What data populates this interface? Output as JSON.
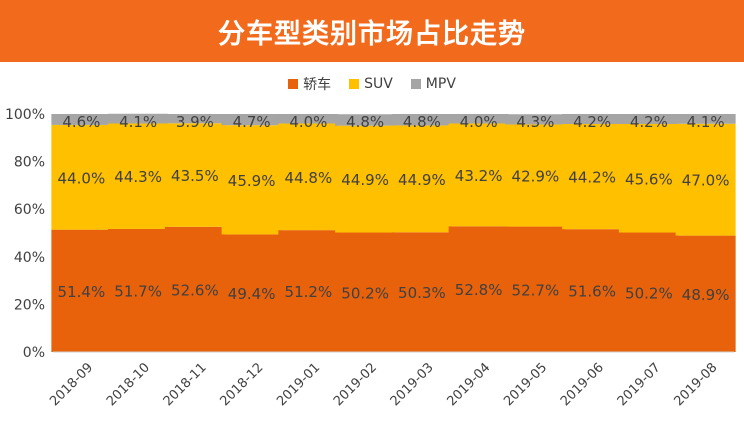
{
  "title": "分车型类别市场占比走势",
  "colors": {
    "header_bg": "#f26b1d",
    "sedan": "#e8620c",
    "suv": "#ffc000",
    "mpv": "#a5a5a5"
  },
  "legend": [
    {
      "label": "轿车",
      "color": "#e8620c"
    },
    {
      "label": "SUV",
      "color": "#ffc000"
    },
    {
      "label": "MPV",
      "color": "#a5a5a5"
    }
  ],
  "chart_data": {
    "type": "bar",
    "stacked": true,
    "categories": [
      "2018-09",
      "2018-10",
      "2018-11",
      "2018-12",
      "2019-01",
      "2019-02",
      "2019-03",
      "2019-04",
      "2019-05",
      "2019-06",
      "2019-07",
      "2019-08"
    ],
    "series": [
      {
        "name": "轿车",
        "values": [
          51.4,
          51.7,
          52.6,
          49.4,
          51.2,
          50.2,
          50.3,
          52.8,
          52.7,
          51.6,
          50.2,
          48.9
        ],
        "color": "#e8620c"
      },
      {
        "name": "SUV",
        "values": [
          44.0,
          44.3,
          43.5,
          45.9,
          44.8,
          44.9,
          44.9,
          43.2,
          42.9,
          44.2,
          45.6,
          47.0
        ],
        "color": "#ffc000"
      },
      {
        "name": "MPV",
        "values": [
          4.6,
          4.1,
          3.9,
          4.7,
          4.0,
          4.8,
          4.8,
          4.0,
          4.3,
          4.2,
          4.2,
          4.1
        ],
        "color": "#a5a5a5"
      }
    ],
    "y_ticks": [
      "0%",
      "20%",
      "40%",
      "60%",
      "80%",
      "100%"
    ],
    "ylim": [
      0,
      100
    ],
    "value_suffix": "%",
    "grid": false,
    "legend_position": "top"
  }
}
